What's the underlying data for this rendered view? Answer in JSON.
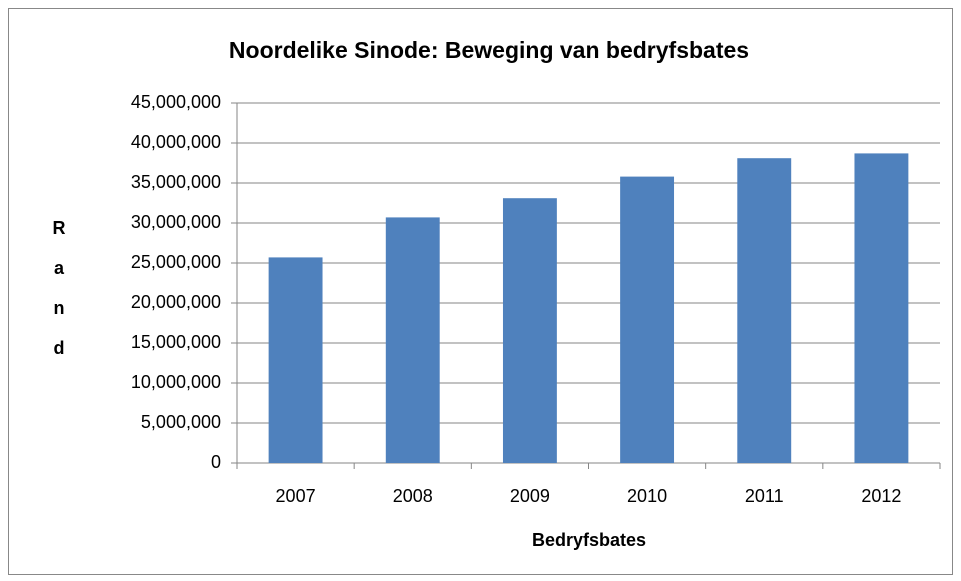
{
  "chart_data": {
    "type": "bar",
    "title": "Noordelike Sinode: Beweging van bedryfsbates",
    "x_label": "Bedryfsbates",
    "y_label": "Rand",
    "categories": [
      "2007",
      "2008",
      "2009",
      "2010",
      "2011",
      "2012"
    ],
    "values": [
      25700000,
      30700000,
      33100000,
      35800000,
      38100000,
      38700000
    ],
    "color": "#4f81bd",
    "ylim": [
      0,
      45000000
    ],
    "yticks": [
      0,
      {
        "value": 5000000,
        "label": "5,000,000"
      },
      {
        "value": 10000000,
        "label": "10,000,000"
      },
      {
        "value": 15000000,
        "label": "15,000,000"
      },
      {
        "value": 20000000,
        "label": "20,000,000"
      },
      {
        "value": 25000000,
        "label": "25,000,000"
      },
      {
        "value": 30000000,
        "label": "30,000,000"
      },
      {
        "value": 35000000,
        "label": "35,000,000"
      },
      {
        "value": 40000000,
        "label": "40,000,000"
      },
      {
        "value": 45000000,
        "label": "45,000,000"
      }
    ],
    "grid": true
  }
}
